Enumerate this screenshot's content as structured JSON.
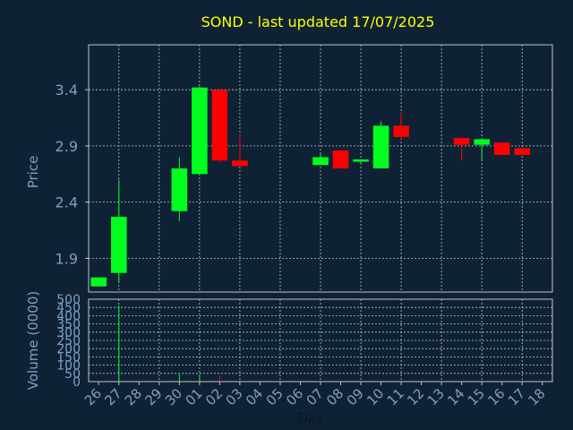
{
  "title": "SOND - last updated 17/07/2025",
  "colors": {
    "background": "#0f2235",
    "title": "#ffff00",
    "axis_text": "#7e9fc3",
    "tick_text": "#7e9fc3",
    "grid": "#b9c4d0",
    "up": "#00ff1e",
    "down": "#ff0000"
  },
  "chart_data": [
    {
      "type": "candlestick",
      "ylabel": "Price",
      "ylim": [
        1.6,
        3.8
      ],
      "yticks": [
        1.9,
        2.4,
        2.9,
        3.4
      ],
      "ytick_labels": [
        "1.9",
        "2.4",
        "2.9",
        "3.4"
      ],
      "grid": true,
      "series": [
        {
          "day": "26",
          "open": 1.65,
          "high": 1.73,
          "low": 1.65,
          "close": 1.73
        },
        {
          "day": "27",
          "open": 1.77,
          "high": 2.6,
          "low": 1.68,
          "close": 2.27
        },
        {
          "day": "30",
          "open": 2.32,
          "high": 2.8,
          "low": 2.23,
          "close": 2.7
        },
        {
          "day": "01",
          "open": 2.65,
          "high": 3.43,
          "low": 2.65,
          "close": 3.42
        },
        {
          "day": "02",
          "open": 3.4,
          "high": 3.4,
          "low": 2.75,
          "close": 2.77
        },
        {
          "day": "03",
          "open": 2.77,
          "high": 3.0,
          "low": 2.72,
          "close": 2.72
        },
        {
          "day": "07",
          "open": 2.73,
          "high": 2.84,
          "low": 2.73,
          "close": 2.8
        },
        {
          "day": "08",
          "open": 2.86,
          "high": 2.86,
          "low": 2.7,
          "close": 2.7
        },
        {
          "day": "09",
          "open": 2.76,
          "high": 2.78,
          "low": 2.74,
          "close": 2.78
        },
        {
          "day": "10",
          "open": 2.7,
          "high": 3.12,
          "low": 2.7,
          "close": 3.08
        },
        {
          "day": "11",
          "open": 3.08,
          "high": 3.2,
          "low": 2.96,
          "close": 2.98
        },
        {
          "day": "14",
          "open": 2.97,
          "high": 2.98,
          "low": 2.77,
          "close": 2.91
        },
        {
          "day": "15",
          "open": 2.91,
          "high": 2.97,
          "low": 2.78,
          "close": 2.96
        },
        {
          "day": "16",
          "open": 2.93,
          "high": 2.93,
          "low": 2.82,
          "close": 2.82
        },
        {
          "day": "17",
          "open": 2.88,
          "high": 2.88,
          "low": 2.82,
          "close": 2.82
        }
      ]
    },
    {
      "type": "bar",
      "ylabel": "Volume (0000)",
      "xlabel": "Day",
      "ylim": [
        0,
        500
      ],
      "yticks": [
        0,
        50,
        100,
        150,
        200,
        250,
        300,
        350,
        400,
        450,
        500
      ],
      "ytick_labels": [
        "0",
        "50",
        "100",
        "150",
        "200",
        "250",
        "300",
        "350",
        "400",
        "450",
        "500"
      ],
      "grid": true,
      "categories": [
        "26",
        "27",
        "28",
        "29",
        "30",
        "01",
        "02",
        "03",
        "04",
        "05",
        "06",
        "07",
        "08",
        "09",
        "10",
        "11",
        "12",
        "13",
        "14",
        "15",
        "16",
        "17",
        "18"
      ],
      "values": [
        2,
        460,
        0,
        0,
        45,
        40,
        35,
        0,
        0,
        0,
        0,
        0,
        0,
        0,
        0,
        0,
        0,
        0,
        0,
        0,
        0,
        0,
        0
      ]
    }
  ]
}
